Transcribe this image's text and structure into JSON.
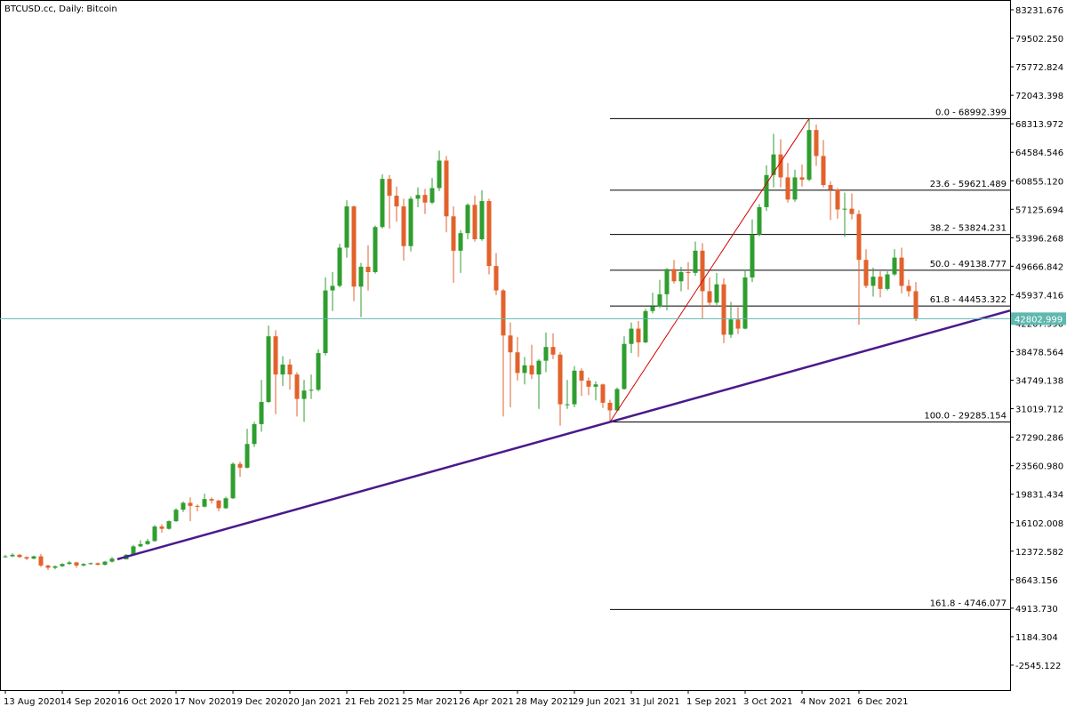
{
  "chart_data": {
    "type": "candlestick",
    "title": "BTCUSD.cc, Daily: Bitcoin",
    "ylim": [
      -5808.7,
      84513.7
    ],
    "yticks": [
      83231.676,
      {
        "value": 79502.25,
        "label": "79502.250"
      },
      75772.824,
      72043.398,
      68313.972,
      64584.546,
      {
        "value": 60855.12,
        "label": "60855.120"
      },
      57125.694,
      53396.268,
      49666.842,
      45937.416,
      {
        "value": 42207.99,
        "label": "42207.990"
      },
      38478.564,
      34749.138,
      31019.712,
      27290.286,
      {
        "value": 23560.98,
        "label": "23560.980"
      },
      19831.434,
      16102.008,
      12372.582,
      8643.156,
      {
        "value": 4913.73,
        "label": "4913.730"
      },
      1184.304,
      -2545.122
    ],
    "categories": [
      "13 Aug 2020",
      null,
      null,
      null,
      null,
      null,
      null,
      null,
      "14 Sep 2020",
      null,
      null,
      null,
      null,
      null,
      null,
      null,
      "16 Oct 2020",
      null,
      null,
      null,
      null,
      null,
      null,
      null,
      "17 Nov 2020",
      null,
      null,
      null,
      null,
      null,
      null,
      null,
      "19 Dec 2020",
      null,
      null,
      null,
      null,
      null,
      null,
      null,
      "20 Jan 2021",
      null,
      null,
      null,
      null,
      null,
      null,
      null,
      "21 Feb 2021",
      null,
      null,
      null,
      null,
      null,
      null,
      null,
      "25 Mar 2021",
      null,
      null,
      null,
      null,
      null,
      null,
      null,
      "26 Apr 2021",
      null,
      null,
      null,
      null,
      null,
      null,
      null,
      "28 May 2021",
      null,
      null,
      null,
      null,
      null,
      null,
      null,
      "29 Jun 2021",
      null,
      null,
      null,
      null,
      null,
      null,
      null,
      "31 Jul 2021",
      null,
      null,
      null,
      null,
      null,
      null,
      null,
      "1 Sep 2021",
      null,
      null,
      null,
      null,
      null,
      null,
      null,
      "3 Oct 2021",
      null,
      null,
      null,
      null,
      null,
      null,
      null,
      "4 Nov 2021",
      null,
      null,
      null,
      null,
      null,
      null,
      null,
      "6 Dec 2021",
      null,
      null,
      null,
      null,
      null,
      null,
      null,
      null
    ],
    "ohlc": [
      [
        11600,
        11900,
        11500,
        11700
      ],
      [
        11700,
        12100,
        11600,
        11900
      ],
      [
        11900,
        12000,
        11500,
        11600
      ],
      [
        11600,
        11700,
        11200,
        11400
      ],
      [
        11400,
        11800,
        11300,
        11700
      ],
      [
        11700,
        12000,
        10300,
        10500
      ],
      [
        10500,
        10600,
        9900,
        10200
      ],
      [
        10200,
        10500,
        10000,
        10400
      ],
      [
        10400,
        10800,
        10300,
        10700
      ],
      [
        10700,
        11100,
        10600,
        10900
      ],
      [
        10900,
        11000,
        10200,
        10500
      ],
      [
        10500,
        10800,
        10400,
        10700
      ],
      [
        10700,
        10900,
        10600,
        10800
      ],
      [
        10800,
        10900,
        10500,
        10600
      ],
      [
        10600,
        11100,
        10500,
        11000
      ],
      [
        11000,
        11600,
        10900,
        11400
      ],
      [
        11400,
        11500,
        11200,
        11300
      ],
      [
        11300,
        12000,
        11300,
        11900
      ],
      [
        11900,
        13200,
        11800,
        13000
      ],
      [
        13000,
        13800,
        12900,
        13300
      ],
      [
        13300,
        14000,
        13200,
        13700
      ],
      [
        13700,
        15800,
        13600,
        15600
      ],
      [
        15600,
        15900,
        14800,
        15300
      ],
      [
        15300,
        16400,
        15200,
        16300
      ],
      [
        16300,
        18000,
        16200,
        17800
      ],
      [
        17800,
        18900,
        17500,
        18700
      ],
      [
        18700,
        19400,
        16300,
        18300
      ],
      [
        18300,
        18500,
        17600,
        18200
      ],
      [
        18200,
        19900,
        18100,
        19200
      ],
      [
        19200,
        19400,
        18600,
        19000
      ],
      [
        19000,
        19100,
        17600,
        18000
      ],
      [
        18000,
        19500,
        17900,
        19300
      ],
      [
        19300,
        24000,
        19200,
        23800
      ],
      [
        23800,
        24100,
        22100,
        23300
      ],
      [
        23300,
        28400,
        23200,
        26400
      ],
      [
        26400,
        29300,
        26000,
        29000
      ],
      [
        29000,
        34800,
        28000,
        31900
      ],
      [
        31900,
        41900,
        31800,
        40500
      ],
      [
        40500,
        41300,
        30300,
        35500
      ],
      [
        35500,
        37900,
        34000,
        36800
      ],
      [
        36800,
        37500,
        33500,
        35500
      ],
      [
        35500,
        35800,
        30000,
        32300
      ],
      [
        32300,
        34800,
        29300,
        33400
      ],
      [
        33400,
        35500,
        32300,
        33500
      ],
      [
        33500,
        38800,
        33300,
        38300
      ],
      [
        38300,
        48200,
        38000,
        46500
      ],
      [
        46500,
        48900,
        43800,
        47100
      ],
      [
        47100,
        52600,
        46900,
        52100
      ],
      [
        52100,
        58300,
        50800,
        57500
      ],
      [
        57500,
        57600,
        45100,
        47000
      ],
      [
        47000,
        50100,
        43000,
        49600
      ],
      [
        49600,
        52400,
        46500,
        48900
      ],
      [
        48900,
        55000,
        48700,
        54800
      ],
      [
        54800,
        61700,
        54600,
        61100
      ],
      [
        61100,
        61600,
        54600,
        58900
      ],
      [
        58900,
        60100,
        55500,
        57500
      ],
      [
        57500,
        58500,
        50400,
        52300
      ],
      [
        52300,
        58800,
        51600,
        58500
      ],
      [
        58500,
        60000,
        57400,
        59000
      ],
      [
        59000,
        59800,
        56500,
        58000
      ],
      [
        58000,
        61200,
        57800,
        59900
      ],
      [
        59900,
        64800,
        59500,
        63500
      ],
      [
        63500,
        64100,
        54100,
        56200
      ],
      [
        56200,
        57500,
        47500,
        51700
      ],
      [
        51700,
        54400,
        48800,
        54000
      ],
      [
        54000,
        57900,
        53200,
        57700
      ],
      [
        57700,
        58900,
        52900,
        53200
      ],
      [
        53200,
        59600,
        53000,
        58200
      ],
      [
        58200,
        58500,
        48600,
        49700
      ],
      [
        49700,
        51400,
        45900,
        46500
      ],
      [
        46500,
        46700,
        30000,
        40600
      ],
      [
        40600,
        42300,
        31200,
        38400
      ],
      [
        38400,
        40400,
        34700,
        35700
      ],
      [
        35700,
        37800,
        34200,
        36700
      ],
      [
        36700,
        39400,
        34900,
        35500
      ],
      [
        35500,
        37500,
        31000,
        37300
      ],
      [
        37300,
        41000,
        35800,
        39100
      ],
      [
        39100,
        40900,
        37500,
        38100
      ],
      [
        38100,
        38400,
        28800,
        31600
      ],
      [
        31600,
        34800,
        31000,
        31600
      ],
      [
        31600,
        36600,
        31200,
        36000
      ],
      [
        36000,
        36300,
        32700,
        34700
      ],
      [
        34700,
        35100,
        32800,
        33900
      ],
      [
        33900,
        34600,
        32100,
        34200
      ],
      [
        34200,
        34300,
        31100,
        31800
      ],
      [
        31800,
        32200,
        29300,
        30800
      ],
      [
        30800,
        33800,
        30700,
        33600
      ],
      [
        33600,
        40500,
        33500,
        39500
      ],
      [
        39500,
        42300,
        38300,
        41500
      ],
      [
        41500,
        42500,
        37800,
        39700
      ],
      [
        39700,
        44100,
        39600,
        43800
      ],
      [
        43800,
        46200,
        43500,
        44400
      ],
      [
        44400,
        47900,
        44200,
        46000
      ],
      [
        46000,
        49400,
        43900,
        49300
      ],
      [
        49300,
        50500,
        47400,
        47700
      ],
      [
        47700,
        49600,
        46400,
        48900
      ],
      [
        48900,
        50200,
        46600,
        48800
      ],
      [
        48800,
        52900,
        48400,
        51700
      ],
      [
        51700,
        52700,
        42800,
        46400
      ],
      [
        46400,
        48200,
        44400,
        44900
      ],
      [
        44900,
        48800,
        44600,
        47300
      ],
      [
        47300,
        48100,
        39600,
        40700
      ],
      [
        40700,
        45000,
        40300,
        42700
      ],
      [
        42700,
        44300,
        40800,
        41500
      ],
      [
        41500,
        49200,
        41400,
        48200
      ],
      [
        48200,
        55800,
        47600,
        53800
      ],
      [
        53800,
        57800,
        53600,
        57400
      ],
      [
        57400,
        62900,
        56900,
        61600
      ],
      [
        61600,
        67000,
        60000,
        64300
      ],
      [
        64300,
        66300,
        60000,
        61300
      ],
      [
        61300,
        63200,
        58000,
        58400
      ],
      [
        58400,
        62300,
        58100,
        61300
      ],
      [
        61300,
        63000,
        60100,
        61000
      ],
      [
        61000,
        69000,
        60800,
        67500
      ],
      [
        67500,
        68200,
        62800,
        64100
      ],
      [
        64100,
        66200,
        60000,
        60300
      ],
      [
        60300,
        60800,
        55700,
        59700
      ],
      [
        59700,
        59900,
        55900,
        57100
      ],
      [
        57100,
        59300,
        53500,
        57200
      ],
      [
        57200,
        59200,
        55800,
        56500
      ],
      [
        56500,
        57000,
        42000,
        50500
      ],
      [
        50500,
        51900,
        46800,
        47100
      ],
      [
        47100,
        49500,
        45700,
        48300
      ],
      [
        48300,
        49000,
        45600,
        46700
      ],
      [
        46700,
        49000,
        46500,
        48600
      ],
      [
        48600,
        51900,
        48400,
        50800
      ],
      [
        50800,
        52100,
        46100,
        47100
      ],
      [
        47100,
        47900,
        45700,
        46400
      ],
      [
        46400,
        47600,
        42500,
        42803
      ]
    ],
    "up_color": "#2f9e2f",
    "down_color": "#e2622c",
    "last_price": 42802.999,
    "last_price_color": "#5fb8b0",
    "fib_start_index": 85,
    "fib_levels": [
      {
        "value": 68992.399,
        "label": "0.0 - 68992.399"
      },
      {
        "value": 59621.489,
        "label": "23.6 - 59621.489"
      },
      {
        "value": 53824.231,
        "label": "38.2 - 53824.231"
      },
      {
        "value": 49138.777,
        "label": "50.0 - 49138.777"
      },
      {
        "value": 44453.322,
        "label": "61.8 - 44453.322"
      },
      {
        "value": 29285.154,
        "label": "100.0 - 29285.154"
      },
      {
        "value": 4746.077,
        "label": "161.8 - 4746.077"
      }
    ],
    "swing_line": {
      "points": [
        [
          85,
          29285.154
        ],
        [
          113,
          68992.399
        ]
      ],
      "color": "#d40000"
    },
    "trendline": {
      "points": [
        [
          15.75,
          11323
        ],
        [
          85,
          29285
        ]
      ],
      "color": "#4b1a8c"
    }
  }
}
